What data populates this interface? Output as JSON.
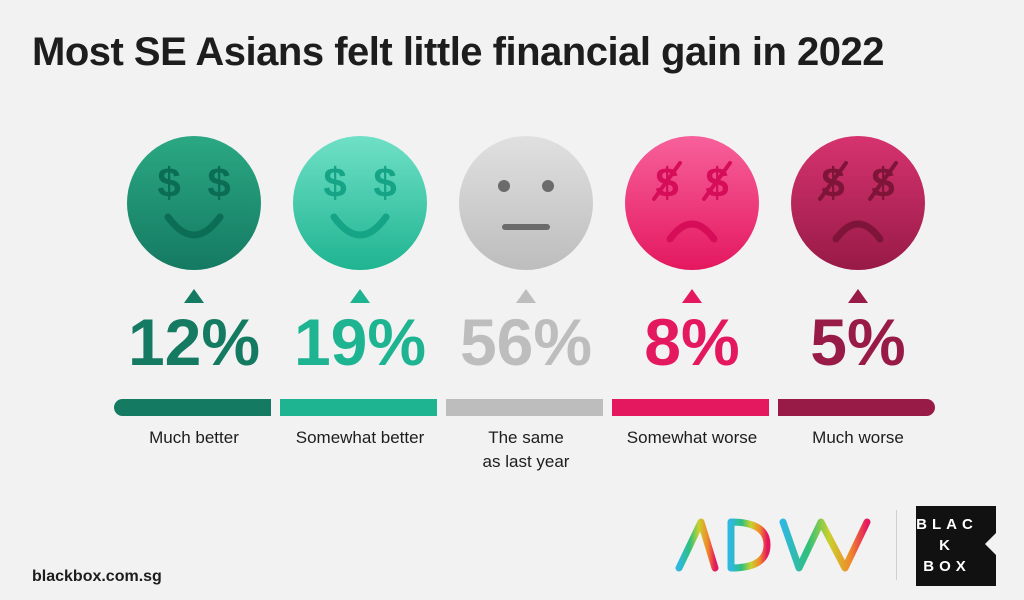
{
  "title": "Most SE Asians felt little financial gain in 2022",
  "chart_data": {
    "type": "bar",
    "title": "Most SE Asians felt little financial gain in 2022",
    "categories": [
      "Much better",
      "Somewhat better",
      "The same as last year",
      "Somewhat worse",
      "Much worse"
    ],
    "values": [
      12,
      19,
      56,
      8,
      5
    ],
    "value_labels": [
      "12%",
      "19%",
      "56%",
      "8%",
      "5%"
    ],
    "colors": [
      "#147a62",
      "#1fb491",
      "#bdbdbd",
      "#e4185f",
      "#981a46"
    ],
    "face_light_colors": [
      "#2ba883",
      "#6fe0c6",
      "#e0e0e0",
      "#f7619b",
      "#d6336f"
    ],
    "face_dark_colors": [
      "#0c6d55",
      "#16a486",
      "#b5b5b5",
      "#d60d59",
      "#7e1539"
    ],
    "faces": [
      "dollar-smile",
      "dollar-smile",
      "neutral",
      "crossed-dollar-frown",
      "crossed-dollar-frown"
    ],
    "unit": "%"
  },
  "footer": {
    "url": "blackbox.com.sg"
  },
  "logos": {
    "adm": "ADM",
    "blackbox_lines": [
      "BLAC",
      "K",
      "BOX"
    ]
  }
}
